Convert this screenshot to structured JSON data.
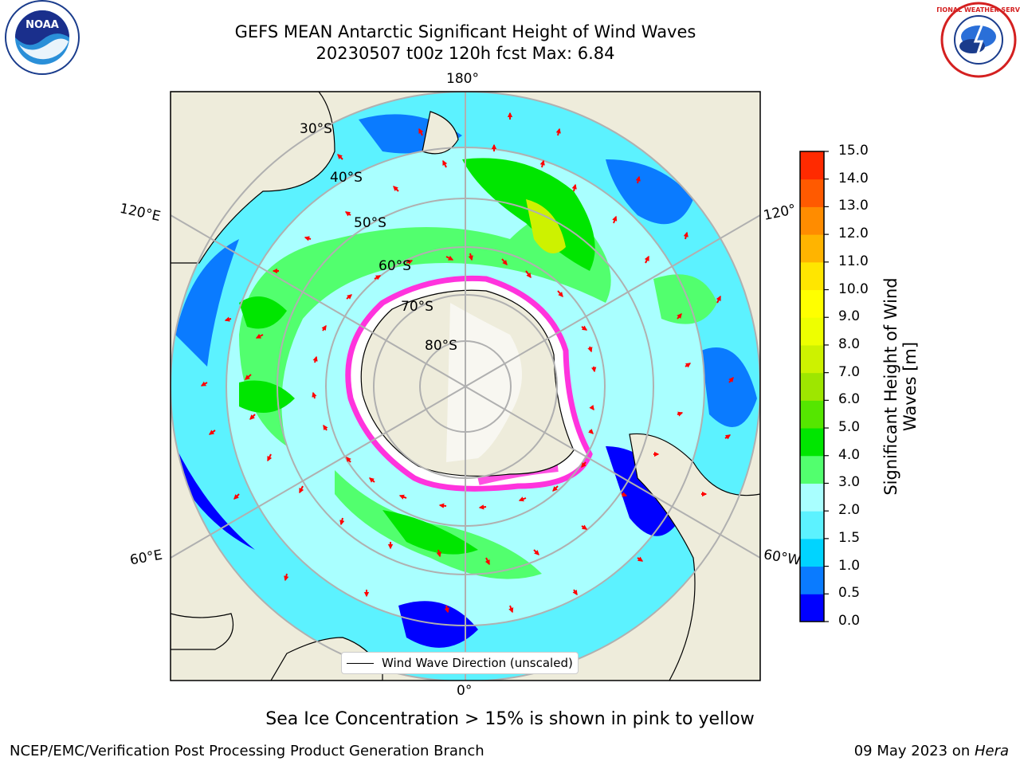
{
  "title_line1": "GEFS MEAN Antarctic Significant Height of Wind Waves",
  "title_line2": "20230507 t00z 120h fcst   Max: 6.84",
  "lat_labels": [
    "30°S",
    "40°S",
    "50°S",
    "60°S",
    "70°S",
    "80°S"
  ],
  "lon_labels": {
    "top": "180°",
    "bottom": "0°",
    "left_upper": "120°E",
    "left_lower": "60°E",
    "right_upper": "120°",
    "right_lower": "60°W"
  },
  "legend_label": "Wind Wave Direction (unscaled)",
  "colorbar": {
    "label": "Significant Height of Wind Waves [m]",
    "ticks": [
      "0.0",
      "0.5",
      "1.0",
      "1.5",
      "2.0",
      "3.0",
      "4.0",
      "5.0",
      "6.0",
      "7.0",
      "8.0",
      "9.0",
      "10.0",
      "11.0",
      "12.0",
      "13.0",
      "14.0",
      "15.0"
    ],
    "colors": [
      "#0000ff",
      "#0a7bff",
      "#00d4ff",
      "#5cf2ff",
      "#a9ffff",
      "#52ff6e",
      "#00e600",
      "#55e600",
      "#9ee600",
      "#cdf200",
      "#eeff00",
      "#ffff00",
      "#ffe600",
      "#ffb400",
      "#ff8c00",
      "#ff5a00",
      "#ff2a00",
      "#ff0000"
    ]
  },
  "colors": {
    "land": "#eeecdb",
    "ice_edge": "#ff33dd",
    "ocean_low": "#a9ffff",
    "arrow": "#ff0000",
    "grid": "#b0b0b0"
  },
  "note": "Sea Ice Concentration > 15% is shown in pink to yellow",
  "footer_left": "NCEP/EMC/Verification Post Processing Product Generation Branch",
  "footer_right_date": "09 May 2023 on ",
  "footer_right_machine": "Hera",
  "logos": {
    "left": "NOAA",
    "right": "NATIONAL WEATHER SERVICE"
  }
}
